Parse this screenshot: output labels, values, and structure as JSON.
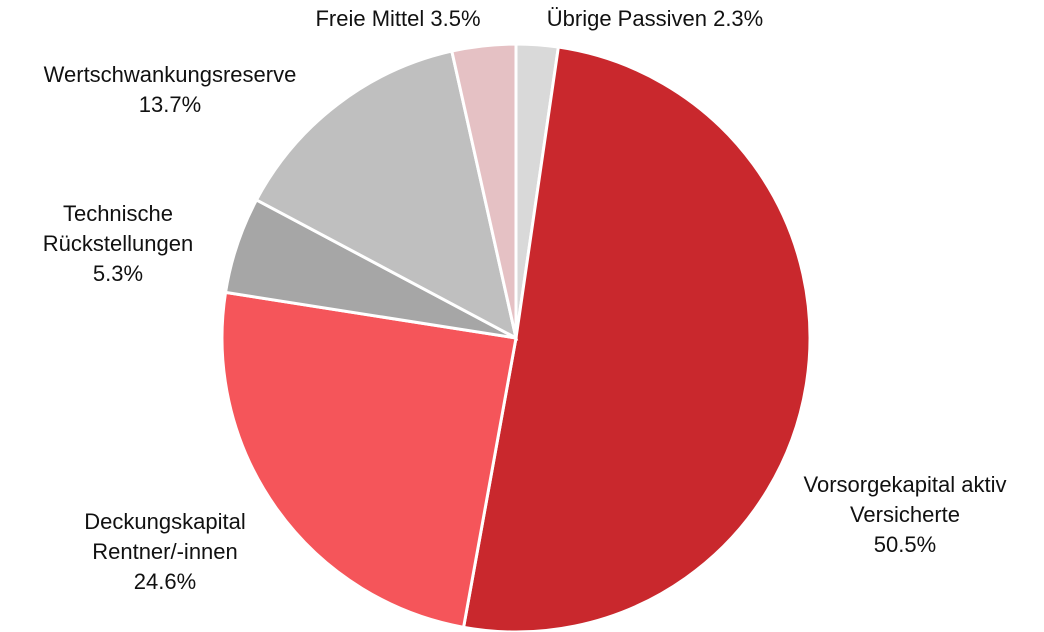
{
  "chart_data": {
    "type": "pie",
    "categories": [
      "Übrige Passiven",
      "Vorsorgekapital aktiv Versicherte",
      "Deckungskapital Rentner/-innen",
      "Technische Rückstellungen",
      "Wertschwankungsreserve",
      "Freie Mittel"
    ],
    "values": [
      2.3,
      50.5,
      24.6,
      5.3,
      13.7,
      3.5
    ],
    "value_labels": [
      "2.3%",
      "50.5%",
      "24.6%",
      "5.3%",
      "13.7%",
      "3.5%"
    ],
    "colors": [
      "#d9d9d9",
      "#c9282d",
      "#f5555a",
      "#a6a6a6",
      "#bfbfbf",
      "#e5c1c4"
    ]
  }
}
